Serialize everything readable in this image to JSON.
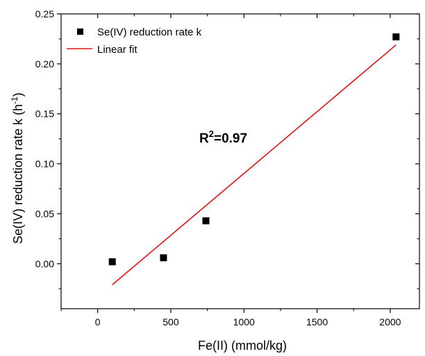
{
  "chart_data": {
    "type": "scatter",
    "xlabel": "Fe(II) (mmol/kg)",
    "ylabel": "Se(IV) reduction rate k (h",
    "ylabel_sup": "-1",
    "ylabel_close": ")",
    "xlim": [
      -250,
      2200
    ],
    "ylim": [
      -0.045,
      0.25
    ],
    "x_ticks": [
      0,
      500,
      1000,
      1500,
      2000
    ],
    "x_tick_labels": [
      "0",
      "500",
      "1000",
      "1500",
      "2000"
    ],
    "y_ticks": [
      0.0,
      0.05,
      0.1,
      0.15,
      0.2,
      0.25
    ],
    "y_tick_labels": [
      "0.00",
      "0.05",
      "0.10",
      "0.15",
      "0.20",
      "0.25"
    ],
    "grid": false,
    "legend_position": "top-left",
    "series": [
      {
        "name": "Se(IV) reduction rate k",
        "kind": "scatter",
        "marker": "square",
        "color": "#000000",
        "x": [
          100,
          450,
          740,
          2040
        ],
        "y": [
          0.002,
          0.006,
          0.043,
          0.227
        ]
      },
      {
        "name": "Linear fit",
        "kind": "line",
        "color": "#e01010",
        "x": [
          100,
          2040
        ],
        "y": [
          -0.021,
          0.219
        ]
      }
    ],
    "annotation": {
      "base": "R",
      "sup": "2",
      "rest": "=0.97",
      "x": 900,
      "y": 0.135
    }
  }
}
